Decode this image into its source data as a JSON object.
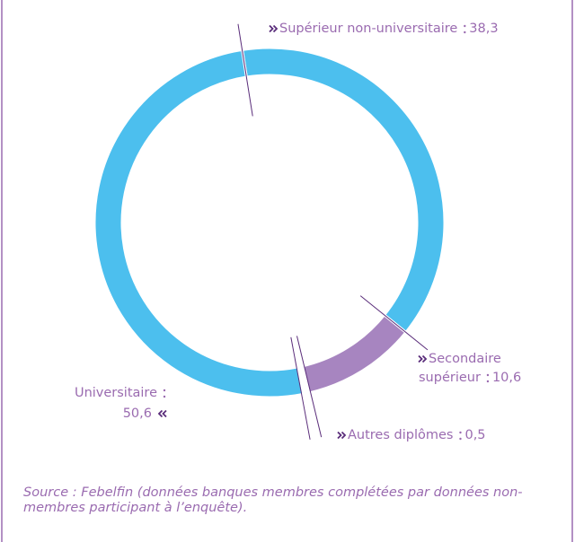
{
  "chart_data": {
    "type": "donut",
    "categories": [
      "Supérieur non-universitaire",
      "Secondaire supérieur",
      "Autres diplômes",
      "Universitaire"
    ],
    "values": [
      38.3,
      10.6,
      0.5,
      50.6
    ],
    "value_labels": [
      "38,3",
      "10,6",
      "0,5",
      "50,6"
    ],
    "colors": [
      "#4cbfee",
      "#a785c0",
      "#ffffff",
      "#4cbfee"
    ],
    "source": "Source : Febelfin (données banques membres complétées par données non-membres participant à l’enquête)."
  }
}
